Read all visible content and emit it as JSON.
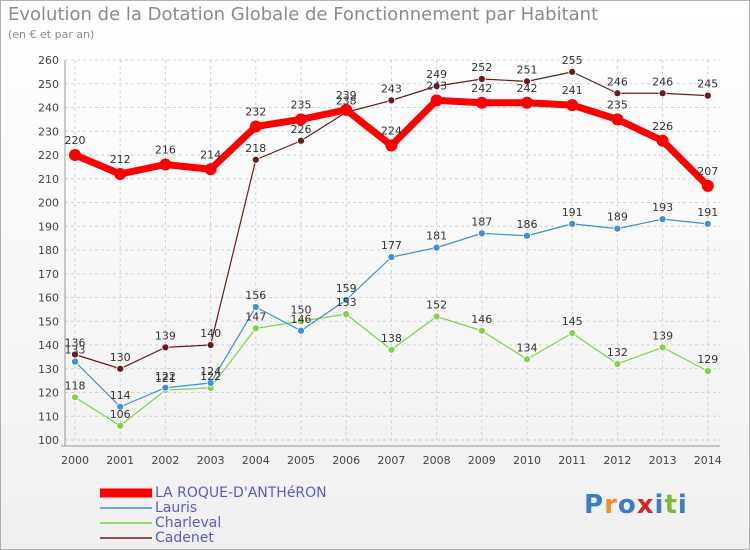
{
  "title": "Evolution de la Dotation Globale de Fonctionnement par Habitant",
  "subtitle": "(en € et par an)",
  "logo": {
    "text": "Proxiti",
    "colors": [
      "#3a7dc9",
      "#f28c28",
      "#3a7dc9",
      "#d8262b",
      "#3a7dc9",
      "#7dbb3c",
      "#3a7dc9"
    ]
  },
  "chart_data": {
    "type": "line",
    "x": [
      "2000",
      "2001",
      "2002",
      "2003",
      "2004",
      "2005",
      "2006",
      "2007",
      "2008",
      "2009",
      "2010",
      "2011",
      "2012",
      "2013",
      "2014"
    ],
    "ylim": [
      100,
      260
    ],
    "yticks": [
      100,
      110,
      120,
      130,
      140,
      150,
      160,
      170,
      180,
      190,
      200,
      210,
      220,
      230,
      240,
      250,
      260
    ],
    "grid": true,
    "legend_position": "bottom-left",
    "series": [
      {
        "name": "LA ROQUE-D'ANTHéRON",
        "color": "#ff0000",
        "values": [
          220,
          212,
          216,
          214,
          232,
          235,
          239,
          224,
          243,
          242,
          242,
          241,
          235,
          226,
          207
        ]
      },
      {
        "name": "Lauris",
        "color": "#3d8fd6",
        "values": [
          133,
          114,
          122,
          124,
          156,
          146,
          159,
          177,
          181,
          187,
          186,
          191,
          189,
          193,
          191
        ]
      },
      {
        "name": "Charleval",
        "color": "#7dd34a",
        "values": [
          118,
          106,
          121,
          122,
          147,
          150,
          153,
          138,
          152,
          146,
          134,
          145,
          132,
          139,
          129
        ]
      },
      {
        "name": "Cadenet",
        "color": "#6b1a1a",
        "values": [
          136,
          130,
          139,
          140,
          218,
          226,
          238,
          243,
          249,
          252,
          251,
          255,
          246,
          246,
          245
        ]
      }
    ]
  }
}
